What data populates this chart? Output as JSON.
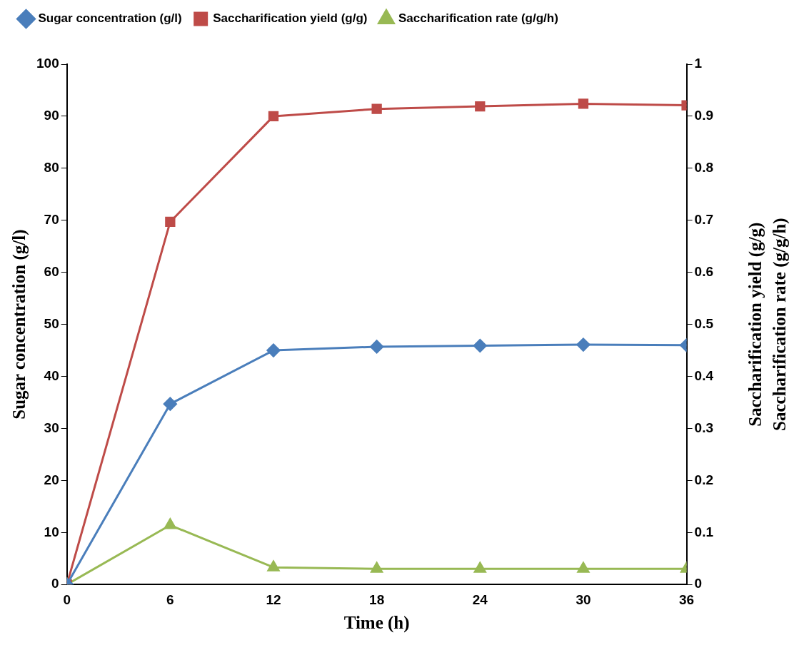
{
  "chart_data": {
    "type": "line",
    "xlabel": "Time (h)",
    "ylabel": "Sugar concentration (g/l)",
    "y2label": "Saccharification yield (g/g)\nSaccharification rate (g/g/h)",
    "x": [
      0,
      6,
      12,
      18,
      24,
      30,
      36
    ],
    "xlim": [
      0,
      36
    ],
    "xticks": [
      0,
      6,
      12,
      18,
      24,
      30,
      36
    ],
    "ylim": [
      0,
      100
    ],
    "yticks": [
      0,
      10,
      20,
      30,
      40,
      50,
      60,
      70,
      80,
      90,
      100
    ],
    "y2lim": [
      0,
      1
    ],
    "y2ticks": [
      0,
      0.1,
      0.2,
      0.3,
      0.4,
      0.5,
      0.6,
      0.7,
      0.8,
      0.9,
      1
    ],
    "grid": false,
    "legend": "top left",
    "line_style": "solid",
    "series": [
      {
        "name": "Sugar concentration (g/l)",
        "color": "#4a7ebb",
        "marker": "diamond",
        "values": [
          0,
          34.7,
          45,
          45.7,
          45.9,
          46.1,
          46
        ]
      },
      {
        "name": "Saccharification yield (g/g)",
        "color": "#be4b48",
        "marker": "square",
        "axis": "y2",
        "values": [
          0,
          0.697,
          0.9,
          0.914,
          0.919,
          0.924,
          0.921
        ]
      },
      {
        "name": "Saccharification rate (g/g/h)",
        "color": "#98b954",
        "marker": "triangle",
        "axis": "y2",
        "values": [
          0,
          0.114,
          0.033,
          0.03,
          0.03,
          0.03,
          0.03
        ]
      }
    ]
  }
}
